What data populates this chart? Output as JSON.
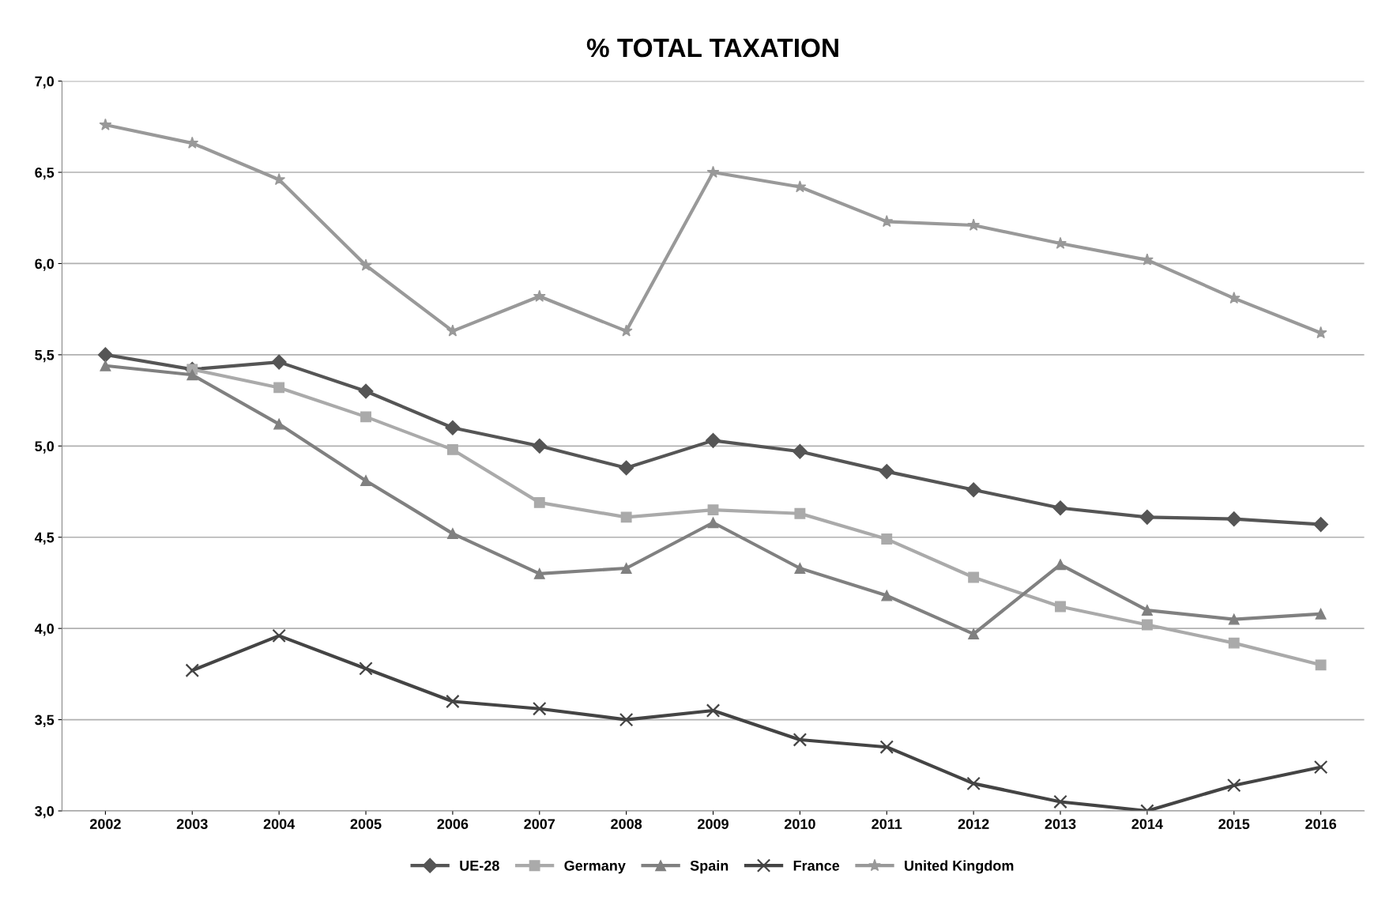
{
  "chart_data": {
    "type": "line",
    "title": "% TOTAL TAXATION",
    "categories": [
      "2002",
      "2003",
      "2004",
      "2005",
      "2006",
      "2007",
      "2008",
      "2009",
      "2010",
      "2011",
      "2012",
      "2013",
      "2014",
      "2015",
      "2016"
    ],
    "series": [
      {
        "name": "UE-28",
        "color": "#555555",
        "marker": "diamond",
        "values": [
          5.5,
          5.42,
          5.46,
          5.3,
          5.1,
          5.0,
          4.88,
          5.03,
          4.97,
          4.86,
          4.76,
          4.66,
          4.61,
          4.6,
          4.57
        ]
      },
      {
        "name": "Germany",
        "color": "#aaaaaa",
        "marker": "square",
        "values": [
          null,
          5.42,
          5.32,
          5.16,
          4.98,
          4.69,
          4.61,
          4.65,
          4.63,
          4.49,
          4.28,
          4.12,
          4.02,
          3.92,
          3.8
        ]
      },
      {
        "name": "Spain",
        "color": "#808080",
        "marker": "triangle",
        "values": [
          5.44,
          5.39,
          5.12,
          4.81,
          4.52,
          4.3,
          4.33,
          4.58,
          4.33,
          4.18,
          3.97,
          4.35,
          4.1,
          4.05,
          4.08
        ]
      },
      {
        "name": "France",
        "color": "#444444",
        "marker": "cross",
        "values": [
          null,
          3.77,
          3.96,
          3.78,
          3.6,
          3.56,
          3.5,
          3.55,
          3.39,
          3.35,
          3.15,
          3.05,
          3.0,
          3.14,
          3.24
        ]
      },
      {
        "name": "United Kingdom",
        "color": "#999999",
        "marker": "star",
        "values": [
          6.76,
          6.66,
          6.46,
          5.99,
          5.63,
          5.82,
          5.63,
          6.5,
          6.42,
          6.23,
          6.21,
          6.11,
          6.02,
          5.81,
          5.62
        ]
      }
    ],
    "ylim": [
      3.0,
      7.0
    ],
    "yticks": [
      {
        "value": 3.0,
        "label": "3,0"
      },
      {
        "value": 3.5,
        "label": "3,5"
      },
      {
        "value": 4.0,
        "label": "4,0"
      },
      {
        "value": 4.5,
        "label": "4,5"
      },
      {
        "value": 5.0,
        "label": "5,0"
      },
      {
        "value": 5.5,
        "label": "5,5"
      },
      {
        "value": 6.0,
        "label": "6,0"
      },
      {
        "value": 6.5,
        "label": "6,5"
      },
      {
        "value": 7.0,
        "label": "7,0"
      }
    ],
    "grid": "y",
    "legend": "bottom",
    "line_style": "solid"
  }
}
